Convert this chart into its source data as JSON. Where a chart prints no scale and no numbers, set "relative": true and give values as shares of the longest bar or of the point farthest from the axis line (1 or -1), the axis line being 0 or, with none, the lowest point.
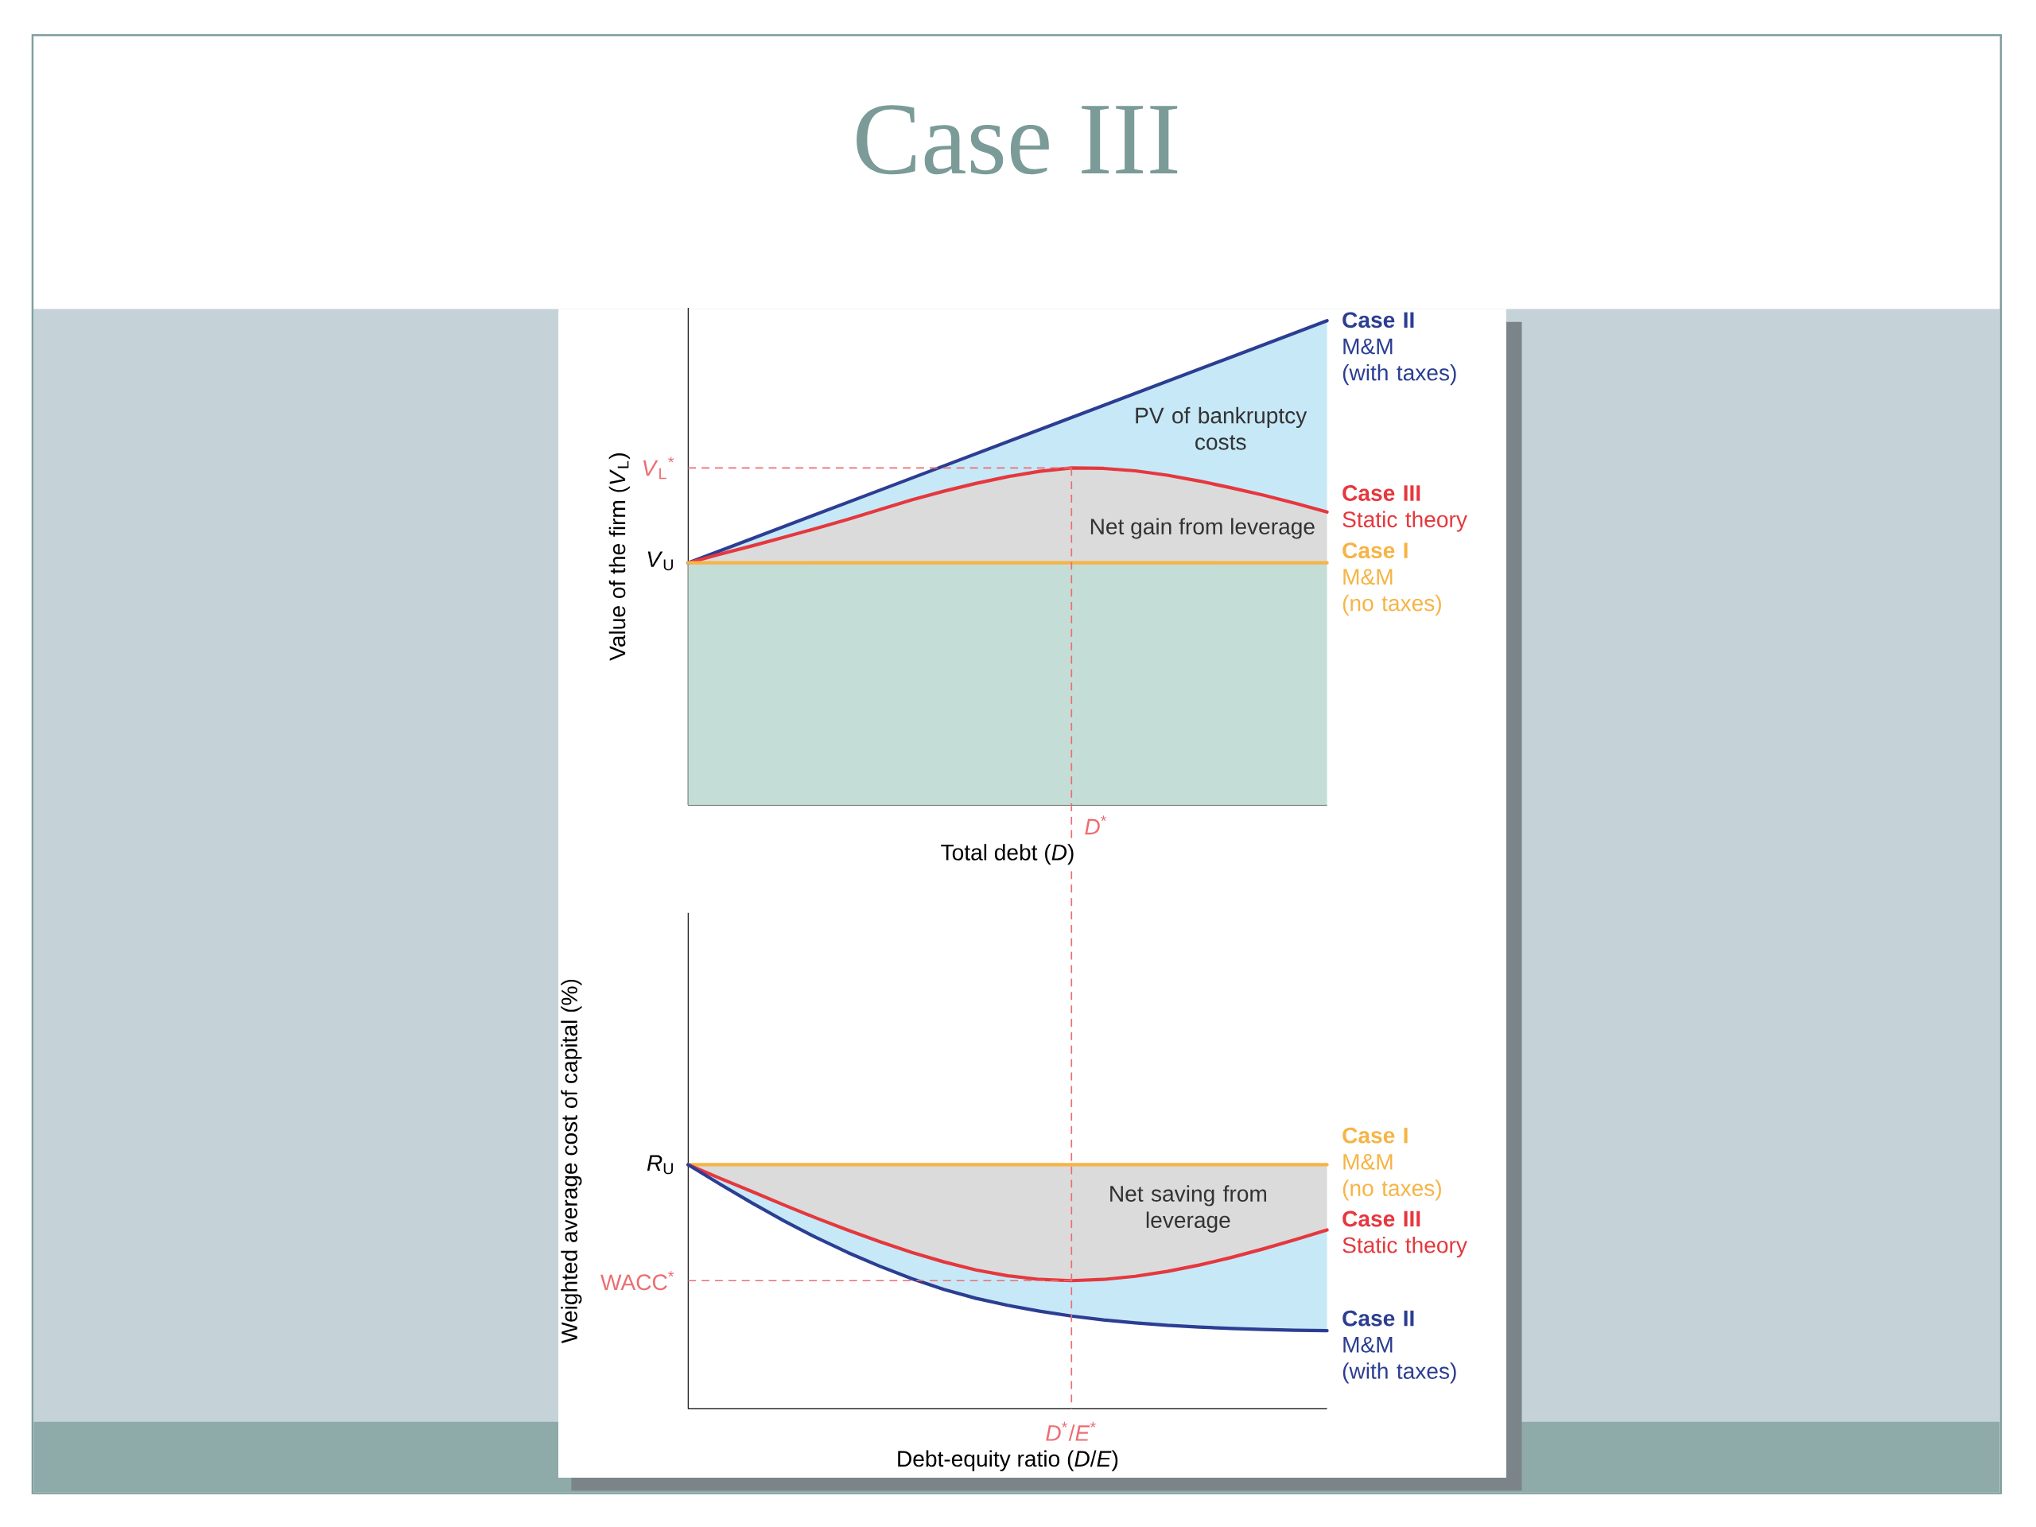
{
  "chart_data": [
    {
      "type": "line",
      "title": "Case III",
      "xlabel": "Total debt (*D*)",
      "ylabel": "Value of the firm (*V*$_{L}$)",
      "relative": true,
      "legend": "right",
      "categories": [
        null,
        null,
        null,
        null,
        null,
        null,
        null,
        null,
        null,
        null,
        null,
        null,
        null,
        null,
        null,
        null,
        null,
        null,
        null,
        null,
        null
      ],
      "series": [
        {
          "name": "**Case II**\nM&M\n(with taxes)",
          "color": "#2c3e92",
          "values": [
            0.5,
            0.525,
            0.55,
            0.575,
            0.6,
            0.625,
            0.65,
            0.675,
            0.7,
            0.725,
            0.75,
            0.775,
            0.8,
            0.825,
            0.85,
            0.875,
            0.9,
            0.925,
            0.95,
            0.975,
            1.0
          ],
          "lower": [
            0.5,
            0.518,
            0.535,
            0.553,
            0.571,
            0.59,
            0.61,
            0.63,
            0.648,
            0.664,
            0.678,
            0.689,
            0.696,
            0.695,
            0.69,
            0.681,
            0.669,
            0.655,
            0.64,
            0.623,
            0.605
          ],
          "upper": [
            0.5,
            0.525,
            0.55,
            0.575,
            0.6,
            0.625,
            0.65,
            0.675,
            0.7,
            0.725,
            0.75,
            0.775,
            0.8,
            0.825,
            0.85,
            0.875,
            0.9,
            0.925,
            0.95,
            0.975,
            1.0
          ]
        },
        {
          "name": "**Case III**\nStatic theory",
          "color": "#e5383e",
          "values": [
            0.5,
            0.518,
            0.535,
            0.553,
            0.571,
            0.59,
            0.61,
            0.63,
            0.648,
            0.664,
            0.678,
            0.689,
            0.696,
            0.695,
            0.69,
            0.681,
            0.669,
            0.655,
            0.64,
            0.623,
            0.605
          ],
          "lower": [
            0.5,
            0.5,
            0.5,
            0.5,
            0.5,
            0.5,
            0.5,
            0.5,
            0.5,
            0.5,
            0.5,
            0.5,
            0.5,
            0.5,
            0.5,
            0.5,
            0.5,
            0.5,
            0.5,
            0.5,
            0.5
          ],
          "upper": [
            0.5,
            0.518,
            0.535,
            0.553,
            0.571,
            0.59,
            0.61,
            0.63,
            0.648,
            0.664,
            0.678,
            0.689,
            0.696,
            0.695,
            0.69,
            0.681,
            0.669,
            0.655,
            0.64,
            0.623,
            0.605
          ]
        },
        {
          "name": "**Case I**\nM&M\n(no taxes)",
          "color": "#f6b445",
          "values": [
            0.5,
            0.5,
            0.5,
            0.5,
            0.5,
            0.5,
            0.5,
            0.5,
            0.5,
            0.5,
            0.5,
            0.5,
            0.5,
            0.5,
            0.5,
            0.5,
            0.5,
            0.5,
            0.5,
            0.5,
            0.5
          ],
          "lower": [
            0,
            0,
            0,
            0,
            0,
            0,
            0,
            0,
            0,
            0,
            0,
            0,
            0,
            0,
            0,
            0,
            0,
            0,
            0,
            0,
            0
          ],
          "upper": [
            0.5,
            0.5,
            0.5,
            0.5,
            0.5,
            0.5,
            0.5,
            0.5,
            0.5,
            0.5,
            0.5,
            0.5,
            0.5,
            0.5,
            0.5,
            0.5,
            0.5,
            0.5,
            0.5,
            0.5,
            0.5
          ]
        }
      ],
      "ref_lines": [
        {
          "axis": "y",
          "value": 0.696,
          "label": "*V*$_{L}$$^{*}$",
          "color": "#ec6d71",
          "line_style": "dashed"
        }
      ],
      "annotations": [
        "*V*$_{U}$",
        "PV of bankruptcy\ncosts",
        "Net gain from leverage",
        "*D*$^{*}$"
      ]
    },
    {
      "type": "line",
      "xlabel": "Debt-equity ratio (*D*/*E*)",
      "ylabel": "Weighted average cost of capital (%)",
      "relative": true,
      "legend": "right",
      "categories": [
        null,
        null,
        null,
        null,
        null,
        null,
        null,
        null,
        null,
        null,
        null,
        null,
        null,
        null,
        null,
        null,
        null,
        null,
        null,
        null,
        null
      ],
      "series": [
        {
          "name": "**Case I**\nM&M\n(no taxes)",
          "color": "#f6b445",
          "values": [
            1.0,
            1.0,
            1.0,
            1.0,
            1.0,
            1.0,
            1.0,
            1.0,
            1.0,
            1.0,
            1.0,
            1.0,
            1.0,
            1.0,
            1.0,
            1.0,
            1.0,
            1.0,
            1.0,
            1.0,
            1.0
          ],
          "lower": [
            1.0,
            0.944,
            0.89,
            0.835,
            0.782,
            0.732,
            0.685,
            0.641,
            0.602,
            0.569,
            0.545,
            0.53,
            0.525,
            0.53,
            0.543,
            0.563,
            0.589,
            0.62,
            0.655,
            0.693,
            0.733
          ],
          "upper": [
            1.0,
            1.0,
            1.0,
            1.0,
            1.0,
            1.0,
            1.0,
            1.0,
            1.0,
            1.0,
            1.0,
            1.0,
            1.0,
            1.0,
            1.0,
            1.0,
            1.0,
            1.0,
            1.0,
            1.0,
            1.0
          ]
        },
        {
          "name": "**Case III**\nStatic theory",
          "color": "#e5383e",
          "values": [
            1.0,
            0.944,
            0.89,
            0.835,
            0.782,
            0.732,
            0.685,
            0.641,
            0.602,
            0.569,
            0.545,
            0.53,
            0.525,
            0.53,
            0.543,
            0.563,
            0.589,
            0.62,
            0.655,
            0.693,
            0.733
          ],
          "lower": [
            1.0,
            0.92,
            0.843,
            0.77,
            0.702,
            0.64,
            0.584,
            0.533,
            0.489,
            0.453,
            0.424,
            0.4,
            0.38,
            0.364,
            0.352,
            0.342,
            0.335,
            0.329,
            0.325,
            0.322,
            0.32
          ],
          "upper": [
            1.0,
            0.944,
            0.89,
            0.835,
            0.782,
            0.732,
            0.685,
            0.641,
            0.602,
            0.569,
            0.545,
            0.53,
            0.525,
            0.53,
            0.543,
            0.563,
            0.589,
            0.62,
            0.655,
            0.693,
            0.733
          ]
        },
        {
          "name": "**Case II**\nM&M\n(with taxes)",
          "color": "#2c3e92",
          "values": [
            1.0,
            0.92,
            0.843,
            0.77,
            0.702,
            0.64,
            0.584,
            0.533,
            0.489,
            0.453,
            0.424,
            0.4,
            0.38,
            0.364,
            0.352,
            0.342,
            0.335,
            0.329,
            0.325,
            0.322,
            0.32
          ]
        }
      ],
      "ref_lines": [
        {
          "axis": "y",
          "value": 0.525,
          "label": "WACC$^{*}$",
          "color": "#ec6d71",
          "line_style": "dashed"
        }
      ],
      "annotations": [
        "*R*$_{U}$",
        "Net saving from\nleverage",
        "*D*$^{*}$/*E*$^{*}$"
      ]
    }
  ]
}
